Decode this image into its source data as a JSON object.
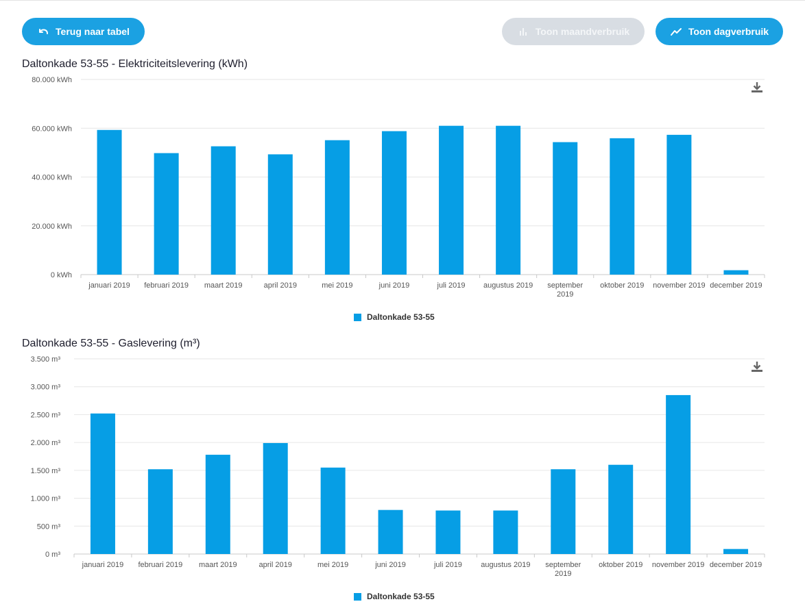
{
  "toolbar": {
    "back_label": "Terug naar tabel",
    "month_label": "Toon maandverbruik",
    "day_label": "Toon dagverbruik"
  },
  "colors": {
    "accent": "#1ba1e2",
    "bar": "#069ee5",
    "disabled": "#d8dde3",
    "grid": "#e6e6e6"
  },
  "chart_data": [
    {
      "type": "bar",
      "title": "Daltonkade 53-55 - Elektriciteitslevering (kWh)",
      "categories": [
        "januari 2019",
        "februari 2019",
        "maart 2019",
        "april 2019",
        "mei 2019",
        "juni 2019",
        "juli 2019",
        "augustus 2019",
        "september 2019",
        "oktober 2019",
        "november 2019",
        "december 2019"
      ],
      "series": [
        {
          "name": "Daltonkade 53-55",
          "values": [
            59300,
            49800,
            52600,
            49300,
            55100,
            58800,
            61000,
            61000,
            54300,
            55900,
            57300,
            1800
          ]
        }
      ],
      "ylim": [
        0,
        80000
      ],
      "yticks": [
        "0 kWh",
        "20.000 kWh",
        "40.000 kWh",
        "60.000 kWh",
        "80.000 kWh"
      ],
      "grid": true,
      "legend": "bottom-center"
    },
    {
      "type": "bar",
      "title": "Daltonkade 53-55 - Gaslevering (m³)",
      "categories": [
        "januari 2019",
        "februari 2019",
        "maart 2019",
        "april 2019",
        "mei 2019",
        "juni 2019",
        "juli 2019",
        "augustus 2019",
        "september 2019",
        "oktober 2019",
        "november 2019",
        "december 2019"
      ],
      "series": [
        {
          "name": "Daltonkade 53-55",
          "values": [
            2520,
            1520,
            1780,
            1990,
            1550,
            790,
            780,
            780,
            1520,
            1600,
            2850,
            90
          ]
        }
      ],
      "ylim": [
        0,
        3500
      ],
      "yticks": [
        "0 m³",
        "500 m³",
        "1.000 m³",
        "1.500 m³",
        "2.000 m³",
        "2.500 m³",
        "3.000 m³",
        "3.500 m³"
      ],
      "grid": true,
      "legend": "bottom-center"
    }
  ]
}
